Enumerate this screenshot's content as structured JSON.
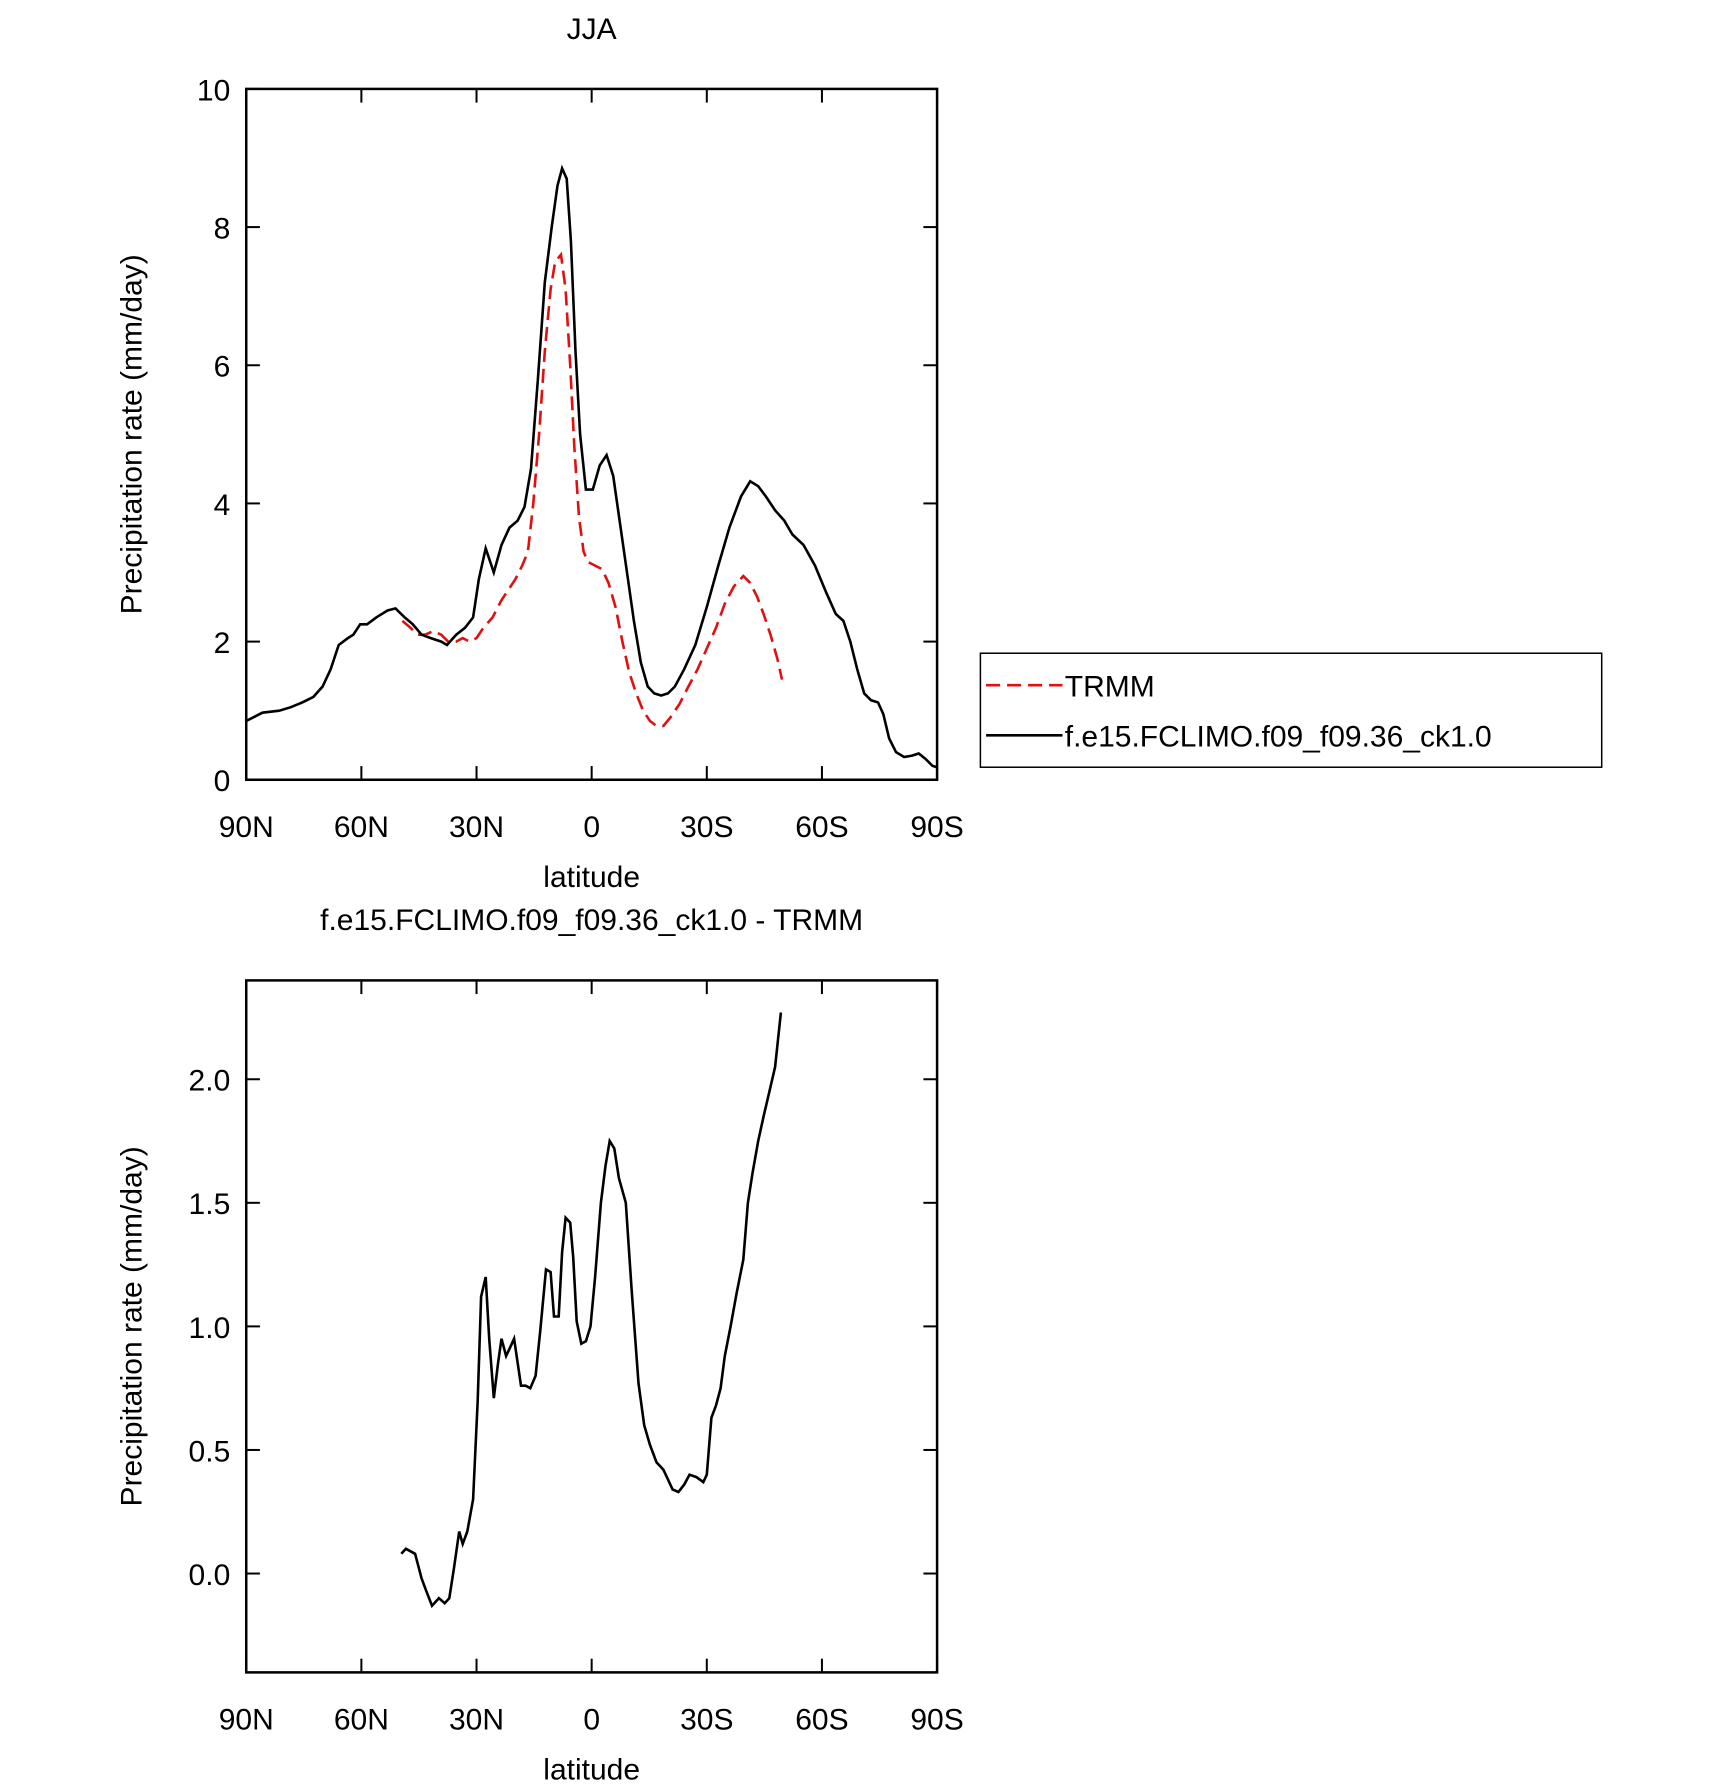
{
  "chart_data": [
    {
      "type": "line",
      "title": "JJA",
      "xlabel": "latitude",
      "ylabel": "Precipitation rate (mm/day)",
      "xlim": [
        90,
        -90
      ],
      "xticks": [
        {
          "value": 90,
          "label": "90N"
        },
        {
          "value": 60,
          "label": "60N"
        },
        {
          "value": 30,
          "label": "30N"
        },
        0,
        {
          "value": -30,
          "label": "30S"
        },
        {
          "value": -60,
          "label": "60S"
        },
        {
          "value": -90,
          "label": "90S"
        }
      ],
      "ylim": [
        0,
        10
      ],
      "yticks": [
        0,
        2,
        4,
        6,
        8,
        10
      ],
      "legend": "right",
      "series": [
        {
          "name": "TRMM",
          "color": "#e01010",
          "line_style": "dashed",
          "x": [
            49.3,
            47.2,
            45.4,
            43.4,
            41.3,
            39.2,
            37.4,
            35.3,
            33.6,
            31.8,
            30.0,
            28.2,
            25.8,
            23.5,
            21.7,
            19.9,
            18.1,
            16.6,
            15.2,
            13.7,
            12.2,
            10.7,
            9.5,
            8.0,
            6.8,
            5.6,
            4.5,
            3.3,
            2.1,
            0.9,
            -0.9,
            -2.7,
            -4.4,
            -6.2,
            -8.0,
            -9.8,
            -11.6,
            -13.4,
            -15.2,
            -16.9,
            -18.7,
            -20.5,
            -22.9,
            -25.2,
            -27.6,
            -30.0,
            -32.4,
            -34.7,
            -37.1,
            -39.5,
            -41.3,
            -43.1,
            -44.8,
            -46.6,
            -48.4,
            -49.6
          ],
          "values": [
            2.3,
            2.2,
            2.1,
            2.1,
            2.15,
            2.1,
            2.0,
            2.0,
            2.05,
            2.0,
            2.05,
            2.2,
            2.35,
            2.6,
            2.75,
            2.9,
            3.1,
            3.3,
            4.0,
            5.0,
            6.2,
            7.1,
            7.5,
            7.6,
            7.1,
            6.0,
            4.8,
            3.8,
            3.3,
            3.15,
            3.1,
            3.05,
            2.85,
            2.5,
            2.0,
            1.55,
            1.25,
            1.0,
            0.85,
            0.78,
            0.78,
            0.9,
            1.1,
            1.35,
            1.6,
            1.9,
            2.2,
            2.55,
            2.8,
            2.95,
            2.85,
            2.65,
            2.4,
            2.1,
            1.75,
            1.45
          ]
        },
        {
          "name": "f.e15.FCLIMO.f09_f09.36_ck1.0",
          "color": "#000000",
          "line_style": "solid",
          "x": [
            90,
            85.8,
            81.4,
            78.4,
            75.4,
            72.5,
            70.1,
            68.0,
            65.9,
            63.5,
            62.1,
            60.3,
            58.5,
            56.1,
            53.2,
            51.1,
            48.7,
            46.6,
            44.3,
            41.9,
            39.2,
            37.7,
            35.3,
            33.0,
            30.9,
            29.4,
            27.6,
            25.5,
            23.5,
            21.4,
            19.3,
            17.5,
            15.8,
            14.0,
            12.2,
            10.4,
            8.9,
            7.7,
            6.5,
            5.4,
            4.2,
            3.0,
            1.5,
            -0.3,
            -2.1,
            -3.9,
            -5.6,
            -7.4,
            -9.2,
            -11.0,
            -12.8,
            -14.6,
            -16.3,
            -18.1,
            -19.9,
            -21.7,
            -24.1,
            -27.0,
            -30.0,
            -33.0,
            -35.9,
            -38.9,
            -41.3,
            -43.4,
            -45.4,
            -47.8,
            -50.2,
            -52.3,
            -55.2,
            -58.2,
            -61.2,
            -63.6,
            -65.6,
            -67.4,
            -69.2,
            -71.0,
            -72.8,
            -74.6,
            -76.0,
            -77.5,
            -79.3,
            -81.4,
            -83.5,
            -85.2,
            -87.0,
            -88.8,
            -90
          ],
          "values": [
            0.85,
            0.97,
            1.0,
            1.05,
            1.12,
            1.2,
            1.35,
            1.6,
            1.95,
            2.05,
            2.1,
            2.25,
            2.25,
            2.35,
            2.45,
            2.48,
            2.35,
            2.25,
            2.1,
            2.05,
            2.0,
            1.95,
            2.1,
            2.2,
            2.35,
            2.9,
            3.35,
            3.0,
            3.4,
            3.65,
            3.75,
            3.95,
            4.5,
            5.8,
            7.2,
            8.0,
            8.6,
            8.85,
            8.7,
            7.8,
            6.2,
            5.0,
            4.2,
            4.2,
            4.55,
            4.7,
            4.4,
            3.7,
            3.0,
            2.3,
            1.7,
            1.35,
            1.25,
            1.22,
            1.25,
            1.35,
            1.6,
            1.95,
            2.5,
            3.1,
            3.65,
            4.1,
            4.32,
            4.25,
            4.1,
            3.9,
            3.75,
            3.55,
            3.4,
            3.1,
            2.7,
            2.4,
            2.3,
            2.0,
            1.6,
            1.25,
            1.15,
            1.12,
            0.95,
            0.6,
            0.4,
            0.33,
            0.35,
            0.38,
            0.3,
            0.2,
            0.18
          ]
        }
      ]
    },
    {
      "type": "line",
      "title": "f.e15.FCLIMO.f09_f09.36_ck1.0 - TRMM",
      "xlabel": "latitude",
      "ylabel": "Precipitation rate (mm/day)",
      "xlim": [
        90,
        -90
      ],
      "xticks": [
        {
          "value": 90,
          "label": "90N"
        },
        {
          "value": 60,
          "label": "60N"
        },
        {
          "value": 30,
          "label": "30N"
        },
        0,
        {
          "value": -30,
          "label": "30S"
        },
        {
          "value": -60,
          "label": "60S"
        },
        {
          "value": -90,
          "label": "90S"
        }
      ],
      "ylim": [
        -0.4,
        2.4
      ],
      "yticks": [
        {
          "value": 0,
          "label": "0.0"
        },
        0.5,
        {
          "value": 1,
          "label": "1.0"
        },
        1.5,
        {
          "value": 2,
          "label": "2.0"
        }
      ],
      "color": "#000000",
      "x": [
        49.6,
        48.4,
        46.0,
        44.3,
        43.1,
        41.6,
        39.8,
        38.3,
        37.1,
        35.9,
        34.5,
        33.6,
        32.4,
        30.9,
        29.7,
        28.8,
        27.6,
        26.7,
        25.5,
        24.4,
        23.5,
        22.3,
        21.1,
        20.2,
        18.4,
        17.2,
        16.0,
        14.6,
        13.4,
        11.9,
        10.7,
        9.8,
        8.6,
        7.7,
        6.8,
        5.6,
        4.8,
        3.9,
        2.7,
        1.5,
        0.3,
        -0.9,
        -2.4,
        -3.6,
        -4.7,
        -5.9,
        -7.1,
        -8.9,
        -10.4,
        -12.2,
        -13.7,
        -15.2,
        -16.9,
        -18.7,
        -19.9,
        -21.1,
        -22.6,
        -24.1,
        -25.5,
        -27.3,
        -29.1,
        -30.0,
        -31.2,
        -32.4,
        -33.6,
        -34.7,
        -36.2,
        -37.7,
        -39.5,
        -40.7,
        -41.9,
        -43.4,
        -44.8,
        -46.3,
        -47.8,
        -49.3
      ],
      "values": [
        0.08,
        0.1,
        0.08,
        -0.02,
        -0.07,
        -0.13,
        -0.1,
        -0.12,
        -0.1,
        0.02,
        0.17,
        0.12,
        0.17,
        0.3,
        0.7,
        1.12,
        1.2,
        0.95,
        0.71,
        0.85,
        0.95,
        0.88,
        0.92,
        0.95,
        0.76,
        0.76,
        0.75,
        0.8,
        0.98,
        1.23,
        1.22,
        1.04,
        1.04,
        1.3,
        1.44,
        1.42,
        1.28,
        1.02,
        0.93,
        0.94,
        1.0,
        1.2,
        1.5,
        1.65,
        1.75,
        1.72,
        1.6,
        1.5,
        1.15,
        0.77,
        0.6,
        0.52,
        0.45,
        0.42,
        0.38,
        0.34,
        0.33,
        0.36,
        0.4,
        0.39,
        0.37,
        0.4,
        0.63,
        0.68,
        0.75,
        0.88,
        1.0,
        1.13,
        1.27,
        1.5,
        1.62,
        1.75,
        1.85,
        1.95,
        2.05,
        2.27
      ]
    }
  ]
}
